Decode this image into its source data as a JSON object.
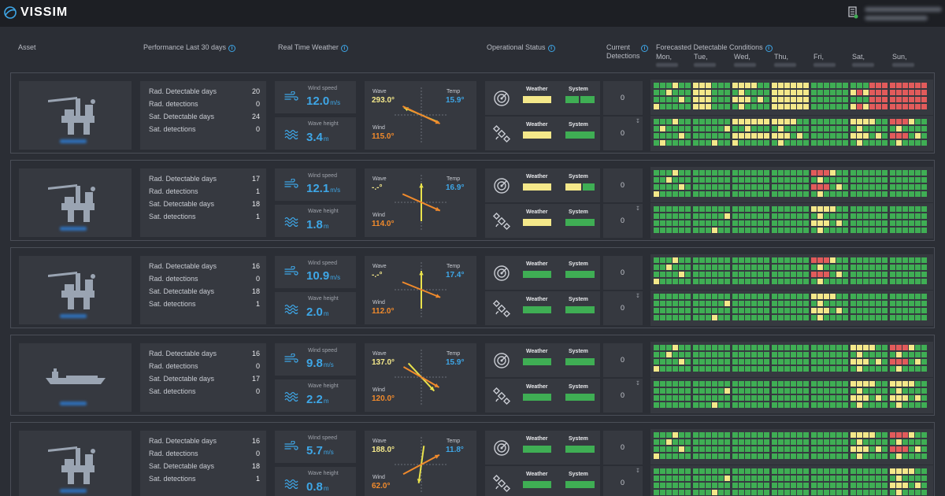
{
  "app": {
    "logo_text": "VISSIM",
    "colors": {
      "bg": "#2b2e35",
      "panel": "#363940",
      "accent": "#3ea6e6",
      "yellow": "#f4e88a",
      "green": "#3fae54",
      "red": "#e25b5b",
      "orange": "#f08a2c",
      "vec_yellow": "#e9e24c"
    }
  },
  "header": {
    "asset": "Asset",
    "performance": "Performance Last 30 days",
    "weather": "Real Time Weather",
    "operational": "Operational Status",
    "current1": "Current",
    "current2": "Detections",
    "forecast": "Forecasted Detectable Conditions",
    "days": [
      "Mon,",
      "Tue,",
      "Wed,",
      "Thu,",
      "Fri,",
      "Sat,",
      "Sun,"
    ]
  },
  "labels": {
    "rad_days": "Rad. Detectable days",
    "rad_det": "Rad. detections",
    "sat_days": "Sat. Detectable days",
    "sat_det": "Sat. detections",
    "wind_speed": "Wind speed",
    "wave_height": "Wave height",
    "wave": "Wave",
    "wind": "Wind",
    "temp": "Temp",
    "weather": "Weather",
    "system": "System",
    "unit_speed": "m/s",
    "unit_height": "m"
  },
  "assets": [
    {
      "icon": "oil-rig-icon",
      "perf": {
        "rad_days": "20",
        "rad_det": "0",
        "sat_days": "24",
        "sat_det": "0"
      },
      "wind_speed": "12.0",
      "wave_height": "3.4",
      "wave_dir": "293.0°",
      "temp": "15.9°",
      "wind_dir": "115.0°",
      "wave_vector_deg": 293,
      "wind_vector_deg": 115,
      "status": {
        "radar_weather": "yellow",
        "radar_system": "green-split",
        "sat_weather": "yellow",
        "sat_system": "green"
      },
      "detections": {
        "radar": "0",
        "sat": "0"
      },
      "forecast": {
        "radar": [
          "gmmx",
          "ygyg",
          "ymix",
          "yyyy",
          "gggg",
          "gred",
          "rrrr"
        ],
        "sat": [
          "gmix",
          "gggm",
          "yymx",
          "ymix",
          "gggg",
          "ymix",
          "rmix"
        ]
      }
    },
    {
      "icon": "oil-rig-icon",
      "perf": {
        "rad_days": "17",
        "rad_det": "1",
        "sat_days": "18",
        "sat_det": "1"
      },
      "wind_speed": "12.1",
      "wave_height": "1.8",
      "wave_dir": "-.-°",
      "temp": "16.9°",
      "wind_dir": "114.0°",
      "wave_vector_deg": 0,
      "wind_vector_deg": 114,
      "status": {
        "radar_weather": "yellow",
        "radar_system": "yellow-green",
        "sat_weather": "yellow",
        "sat_system": "green"
      },
      "detections": {
        "radar": "0",
        "sat": "0"
      },
      "forecast": {
        "radar": [
          "gmmx",
          "gggg",
          "gggg",
          "gggg",
          "rmix",
          "gggg",
          "gggg"
        ],
        "sat": [
          "gggg",
          "gggm",
          "gggg",
          "gggg",
          "ymix",
          "gggg",
          "gggg"
        ]
      }
    },
    {
      "icon": "oil-rig-icon",
      "perf": {
        "rad_days": "16",
        "rad_det": "0",
        "sat_days": "18",
        "sat_det": "1"
      },
      "wind_speed": "10.9",
      "wave_height": "2.0",
      "wave_dir": "-.-°",
      "temp": "17.4°",
      "wind_dir": "112.0°",
      "wave_vector_deg": 0,
      "wind_vector_deg": 112,
      "status": {
        "radar_weather": "green",
        "radar_system": "green",
        "sat_weather": "green",
        "sat_system": "green"
      },
      "detections": {
        "radar": "0",
        "sat": "0"
      },
      "forecast": {
        "radar": [
          "gmmx",
          "gggg",
          "gggg",
          "gggg",
          "rmix",
          "gggg",
          "gggg"
        ],
        "sat": [
          "gggg",
          "gggm",
          "gggg",
          "gggg",
          "ymix",
          "gggg",
          "gggg"
        ]
      }
    },
    {
      "icon": "vessel-icon",
      "perf": {
        "rad_days": "16",
        "rad_det": "0",
        "sat_days": "17",
        "sat_det": "0"
      },
      "wind_speed": "9.8",
      "wave_height": "2.2",
      "wave_dir": "137.0°",
      "temp": "15.9°",
      "wind_dir": "120.0°",
      "wave_vector_deg": 137,
      "wind_vector_deg": 120,
      "status": {
        "radar_weather": "green",
        "radar_system": "green",
        "sat_weather": "green",
        "sat_system": "green"
      },
      "detections": {
        "radar": "0",
        "sat": "0"
      },
      "forecast": {
        "radar": [
          "gmmx",
          "gggg",
          "gggg",
          "gggg",
          "gggg",
          "ymix",
          "rmix"
        ],
        "sat": [
          "gggg",
          "gggm",
          "gggg",
          "gggg",
          "gggg",
          "ymix",
          "ymix"
        ]
      }
    },
    {
      "icon": "oil-rig-icon",
      "perf": {
        "rad_days": "16",
        "rad_det": "0",
        "sat_days": "18",
        "sat_det": "1"
      },
      "wind_speed": "5.7",
      "wave_height": "0.8",
      "wave_dir": "188.0°",
      "temp": "11.8°",
      "wind_dir": "62.0°",
      "wave_vector_deg": 188,
      "wind_vector_deg": 62,
      "status": {
        "radar_weather": "green",
        "radar_system": "green",
        "sat_weather": "green",
        "sat_system": "green"
      },
      "detections": {
        "radar": "0",
        "sat": "0"
      },
      "forecast": {
        "radar": [
          "gmmx",
          "gggg",
          "gggg",
          "gggg",
          "gggg",
          "ymix",
          "rmix"
        ],
        "sat": [
          "gggg",
          "gggm",
          "gggg",
          "gggg",
          "gggg",
          "gggg",
          "ymix"
        ]
      }
    }
  ]
}
